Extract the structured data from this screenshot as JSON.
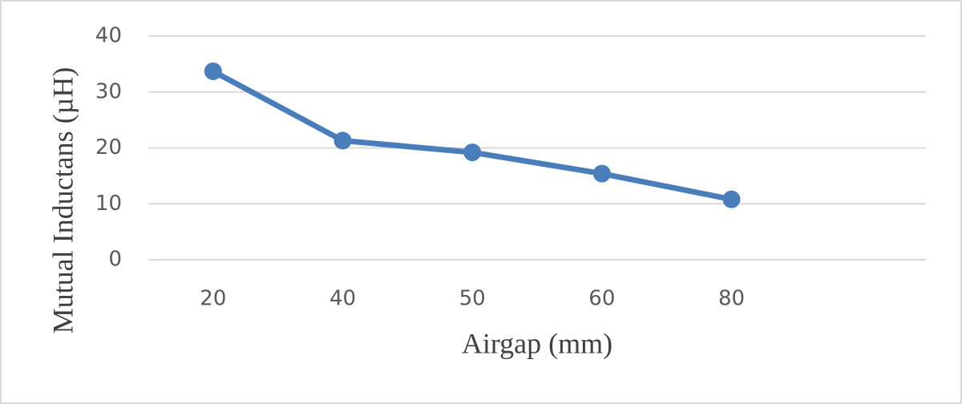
{
  "chart_data": {
    "type": "line",
    "x_label": "Airgap (mm)",
    "y_label": "Mutual Inductans (µH)",
    "categories": [
      "20",
      "40",
      "50",
      "60",
      "80",
      null
    ],
    "values": [
      33.7,
      21.3,
      19.2,
      15.4,
      10.8,
      null
    ],
    "color": "#4a7ebb",
    "ylim": [
      0,
      40
    ],
    "yticks": [
      0,
      10,
      20,
      30,
      40
    ],
    "grid": true
  }
}
